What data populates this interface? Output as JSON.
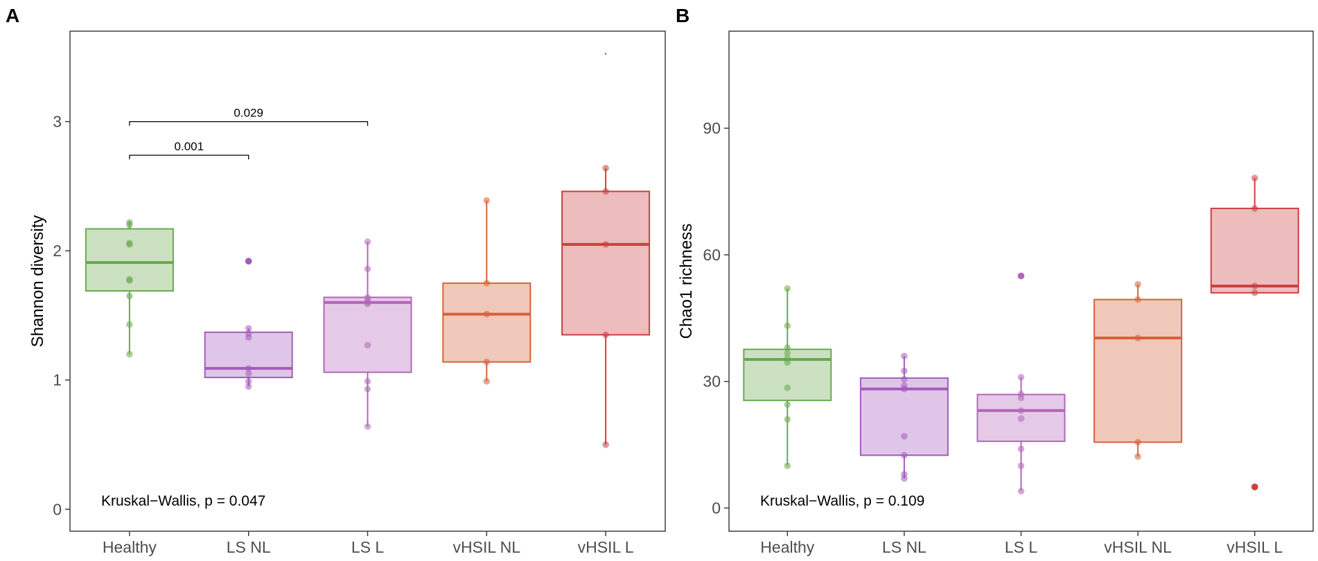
{
  "colors": {
    "Healthy": "#6aa84f",
    "LS NL": "#a35bbd",
    "LS L": "#b266b8",
    "vHSIL NL": "#d5623a",
    "vHSIL L": "#cc3f3f"
  },
  "chart_data": [
    {
      "type": "box",
      "panel_letter": "A",
      "ylabel": "Shannon diversity",
      "xlabel": "",
      "ylim": [
        -0.17,
        3.7
      ],
      "yticks": [
        0,
        1,
        2,
        3
      ],
      "categories": [
        "Healthy",
        "LS NL",
        "LS L",
        "vHSIL NL",
        "vHSIL L"
      ],
      "boxes": [
        {
          "group": "Healthy",
          "q1": 1.69,
          "median": 1.91,
          "q3": 2.17,
          "whisker_low": 1.2,
          "whisker_high": 2.23,
          "outliers": [],
          "points": [
            1.2,
            1.43,
            1.65,
            1.77,
            1.78,
            2.05,
            2.06,
            2.2,
            2.22
          ]
        },
        {
          "group": "LS NL",
          "q1": 1.02,
          "median": 1.09,
          "q3": 1.37,
          "whisker_low": 0.95,
          "whisker_high": 1.4,
          "outliers": [
            1.92
          ],
          "points": [
            0.95,
            0.99,
            1.05,
            1.09,
            1.33,
            1.36,
            1.4,
            1.92
          ]
        },
        {
          "group": "LS L",
          "q1": 1.06,
          "median": 1.6,
          "q3": 1.64,
          "whisker_low": 0.64,
          "whisker_high": 2.07,
          "outliers": [],
          "points": [
            0.64,
            0.93,
            0.99,
            1.27,
            1.59,
            1.6,
            1.62,
            1.64,
            1.86,
            2.07
          ]
        },
        {
          "group": "vHSIL NL",
          "q1": 1.14,
          "median": 1.51,
          "q3": 1.75,
          "whisker_low": 0.99,
          "whisker_high": 2.39,
          "outliers": [],
          "points": [
            0.99,
            1.14,
            1.51,
            1.75,
            2.39
          ]
        },
        {
          "group": "vHSIL L",
          "q1": 1.35,
          "median": 2.05,
          "q3": 2.46,
          "whisker_low": 0.5,
          "whisker_high": 2.64,
          "outliers": [],
          "points": [
            0.5,
            1.35,
            2.05,
            2.46,
            2.64
          ]
        }
      ],
      "brackets": [
        {
          "from": "Healthy",
          "to": "LS NL",
          "y": 2.74,
          "label": "0.001"
        },
        {
          "from": "Healthy",
          "to": "LS L",
          "y": 3.0,
          "label": "0.029"
        }
      ],
      "stray_marks": [
        {
          "x": "vHSIL L",
          "y": 3.52,
          "label": "."
        }
      ],
      "annotation": "Kruskal−Wallis, p = 0.047"
    },
    {
      "type": "box",
      "panel_letter": "B",
      "ylabel": "Chao1 richness",
      "xlabel": "",
      "ylim": [
        -5.5,
        113
      ],
      "yticks": [
        0,
        30,
        60,
        90
      ],
      "categories": [
        "Healthy",
        "LS NL",
        "LS L",
        "vHSIL NL",
        "vHSIL L"
      ],
      "boxes": [
        {
          "group": "Healthy",
          "q1": 25.5,
          "median": 35.2,
          "q3": 37.6,
          "whisker_low": 10,
          "whisker_high": 52,
          "outliers": [],
          "points": [
            10,
            21,
            24.5,
            28.5,
            34.5,
            35.5,
            36.7,
            38,
            43.2,
            52
          ]
        },
        {
          "group": "LS NL",
          "q1": 12.5,
          "median": 28.2,
          "q3": 30.8,
          "whisker_low": 7,
          "whisker_high": 36,
          "outliers": [],
          "points": [
            7,
            8,
            12.5,
            17,
            28.2,
            29,
            30.5,
            32.5,
            36
          ]
        },
        {
          "group": "LS L",
          "q1": 15.8,
          "median": 23.1,
          "q3": 26.9,
          "whisker_low": 4,
          "whisker_high": 31,
          "outliers": [
            55
          ],
          "points": [
            4,
            10,
            14,
            21.2,
            23.1,
            26.1,
            27,
            31,
            55
          ]
        },
        {
          "group": "vHSIL NL",
          "q1": 15.6,
          "median": 40.3,
          "q3": 49.4,
          "whisker_low": 12.2,
          "whisker_high": 53,
          "outliers": [],
          "points": [
            12.2,
            15.6,
            40.3,
            49.4,
            53
          ]
        },
        {
          "group": "vHSIL L",
          "q1": 51,
          "median": 52.6,
          "q3": 71,
          "whisker_low": 51,
          "whisker_high": 78.2,
          "outliers": [
            5
          ],
          "points": [
            5,
            51,
            52.6,
            71,
            78.2
          ]
        }
      ],
      "brackets": [],
      "stray_marks": [],
      "annotation": "Kruskal−Wallis, p = 0.109"
    }
  ]
}
